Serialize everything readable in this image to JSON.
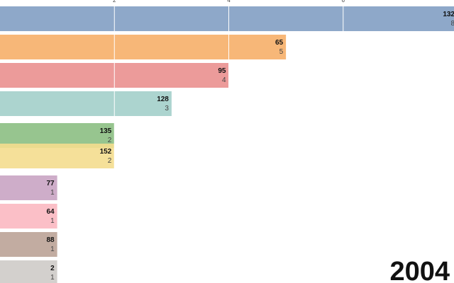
{
  "chart_data": {
    "type": "bar",
    "orientation": "horizontal",
    "title": "",
    "xlabel": "",
    "ylabel": "",
    "period_label": "2004",
    "xlim": [
      0,
      8
    ],
    "ticks": [
      2,
      4,
      6
    ],
    "grid": true,
    "legend": "none",
    "bars": [
      {
        "label": "132",
        "value": 8,
        "color": "#8ea8c9"
      },
      {
        "label": "65",
        "value": 5,
        "color": "#f7b778"
      },
      {
        "label": "95",
        "value": 4,
        "color": "#ec9b9a"
      },
      {
        "label": "128",
        "value": 3,
        "color": "#acd4cf"
      },
      {
        "label": "135",
        "value": 2,
        "color": "#97c58f"
      },
      {
        "label": "152",
        "value": 2,
        "color": "#f4dd8e"
      },
      {
        "label": "77",
        "value": 1,
        "color": "#ceadc9"
      },
      {
        "label": "64",
        "value": 1,
        "color": "#fbbfc7"
      },
      {
        "label": "88",
        "value": 1,
        "color": "#c2aca1"
      },
      {
        "label": "2",
        "value": 1,
        "color": "#d3d0cd"
      }
    ]
  }
}
